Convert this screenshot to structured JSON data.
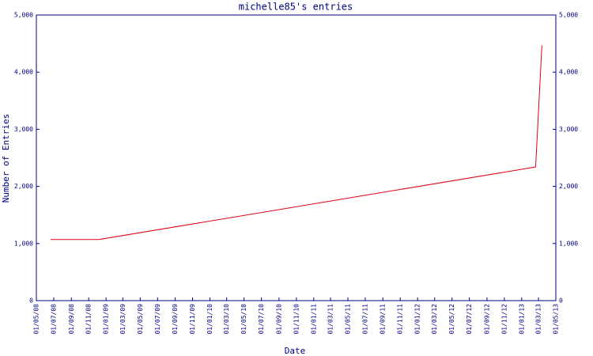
{
  "chart_data": {
    "type": "line",
    "title": "michelle85's entries",
    "x_label": "Date",
    "y_label": "Number of Entries",
    "x": [
      "20/06/08",
      "07/12/08",
      "19/02/13",
      "13/03/13"
    ],
    "values": [
      1070,
      1070,
      2340,
      4470
    ],
    "color": "#e0001a",
    "xlim": [
      "01/05/08",
      "01/05/13"
    ],
    "xticks": [
      "01/05/08",
      "01/07/08",
      "01/09/08",
      "01/11/08",
      "01/01/09",
      "01/03/09",
      "01/05/09",
      "01/07/09",
      "01/09/09",
      "01/11/09",
      "01/01/10",
      "01/03/10",
      "01/05/10",
      "01/07/10",
      "01/09/10",
      "01/11/10",
      "01/01/11",
      "01/03/11",
      "01/05/11",
      "01/07/11",
      "01/09/11",
      "01/11/11",
      "01/01/12",
      "01/03/12",
      "01/05/12",
      "01/07/12",
      "01/09/12",
      "01/11/12",
      "01/01/13",
      "01/03/13",
      "01/05/13"
    ],
    "ylim": [
      0,
      5000
    ],
    "yticks": [
      0,
      {
        "value": 1000,
        "label": "1,000"
      },
      {
        "value": 2000,
        "label": "2,000"
      },
      {
        "value": 3000,
        "label": "3,000"
      },
      {
        "value": 4000,
        "label": "4,000"
      },
      {
        "value": 5000,
        "label": "5,000"
      }
    ],
    "right_axis": true
  }
}
